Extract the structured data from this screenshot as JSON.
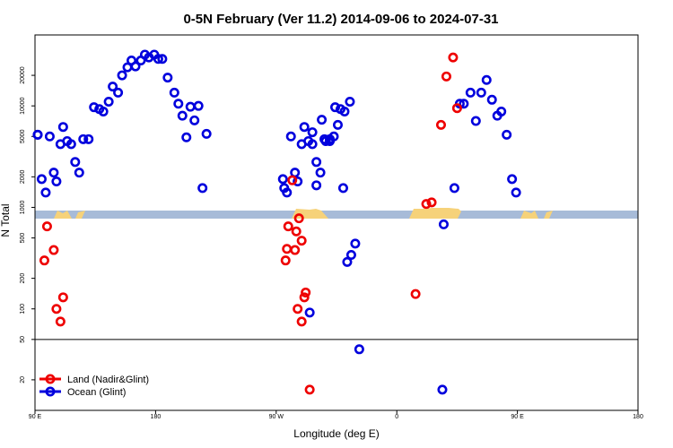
{
  "chart_data": {
    "type": "scatter",
    "title": "0-5N February (Ver 11.2)   2014-09-06 to 2024-07-31",
    "xlabel": "Longitude (deg E)",
    "ylabel": "N Total",
    "y_scale": "log",
    "ylim": [
      10,
      50000
    ],
    "x_ticks": [
      "90 E",
      "180",
      "90 W",
      "0",
      "90 E",
      "180"
    ],
    "y_ticks": [
      "20",
      "50",
      "100",
      "200",
      "500",
      "1000",
      "2000",
      "5000",
      "10000",
      "20000"
    ],
    "reference_line": 50,
    "legend_position": "bottom-left",
    "series": [
      {
        "name": "Land (Nadir&Glint)",
        "color": "#ee0000",
        "points": [
          [
            97,
            300
          ],
          [
            99,
            650
          ],
          [
            104,
            380
          ],
          [
            106,
            100
          ],
          [
            109,
            75
          ],
          [
            111,
            130
          ],
          [
            -82,
            390
          ],
          [
            -78,
            1850
          ],
          [
            -75,
            580
          ],
          [
            -73,
            780
          ],
          [
            -71,
            470
          ],
          [
            -68,
            145
          ],
          [
            -65,
            16
          ],
          [
            14,
            140
          ],
          [
            22,
            1080
          ],
          [
            26,
            1120
          ],
          [
            33,
            6500
          ],
          [
            37,
            19500
          ],
          [
            42,
            30000
          ],
          [
            45,
            9500
          ],
          [
            97,
            300
          ],
          [
            99,
            650
          ],
          [
            104,
            380
          ],
          [
            106,
            100
          ],
          [
            109,
            75
          ],
          [
            111,
            130
          ]
        ]
      },
      {
        "name": "Ocean (Glint)",
        "color": "#0000dd",
        "points": [
          [
            92,
            5200
          ],
          [
            95,
            1900
          ],
          [
            98,
            1400
          ],
          [
            101,
            5000
          ],
          [
            104,
            2200
          ],
          [
            106,
            1800
          ],
          [
            109,
            4200
          ],
          [
            111,
            6200
          ],
          [
            114,
            4500
          ],
          [
            117,
            4200
          ],
          [
            120,
            2800
          ],
          [
            123,
            2200
          ],
          [
            126,
            4700
          ],
          [
            130,
            4700
          ],
          [
            134,
            9700
          ],
          [
            138,
            9300
          ],
          [
            141,
            8800
          ],
          [
            145,
            11000
          ],
          [
            148,
            15500
          ],
          [
            152,
            13500
          ],
          [
            155,
            20000
          ],
          [
            159,
            24000
          ],
          [
            162,
            28000
          ],
          [
            165,
            24500
          ],
          [
            169,
            28000
          ],
          [
            172,
            32000
          ],
          [
            175,
            30000
          ],
          [
            179,
            32000
          ],
          [
            -178,
            29000
          ],
          [
            -175,
            29000
          ],
          [
            -171,
            19000
          ],
          [
            -166,
            13500
          ],
          [
            -163,
            10500
          ],
          [
            -160,
            8000
          ],
          [
            -157,
            4900
          ],
          [
            -154,
            9800
          ],
          [
            -151,
            7200
          ],
          [
            -148,
            10000
          ],
          [
            -145,
            1550
          ],
          [
            -142,
            5300
          ],
          [
            -84,
            1550
          ],
          [
            -65,
            92
          ],
          [
            -63,
            5500
          ],
          [
            -60,
            1650
          ],
          [
            -56,
            7300
          ],
          [
            -53,
            4500
          ],
          [
            -50,
            4500
          ],
          [
            -47,
            5000
          ],
          [
            -44,
            6500
          ],
          [
            -40,
            1550
          ],
          [
            -37,
            290
          ],
          [
            -34,
            340
          ],
          [
            -31,
            440
          ],
          [
            -28,
            40
          ],
          [
            34,
            16
          ],
          [
            35,
            680
          ],
          [
            43,
            1550
          ],
          [
            47,
            10500
          ],
          [
            50,
            10500
          ],
          [
            55,
            13500
          ],
          [
            59,
            7100
          ],
          [
            63,
            13500
          ],
          [
            67,
            18000
          ],
          [
            71,
            11500
          ],
          [
            75,
            8000
          ],
          [
            78,
            8800
          ],
          [
            82,
            5200
          ],
          [
            86,
            1900
          ],
          [
            89,
            1400
          ],
          [
            92,
            5200
          ],
          [
            95,
            1900
          ],
          [
            98,
            1400
          ],
          [
            101,
            5000
          ],
          [
            104,
            2200
          ],
          [
            106,
            1800
          ],
          [
            109,
            4200
          ],
          [
            111,
            6200
          ],
          [
            114,
            4500
          ],
          [
            117,
            4200
          ],
          [
            120,
            2800
          ],
          [
            123,
            2200
          ],
          [
            126,
            4700
          ],
          [
            130,
            4700
          ],
          [
            134,
            9700
          ],
          [
            138,
            9300
          ],
          [
            141,
            8800
          ],
          [
            145,
            11000
          ]
        ]
      }
    ]
  }
}
